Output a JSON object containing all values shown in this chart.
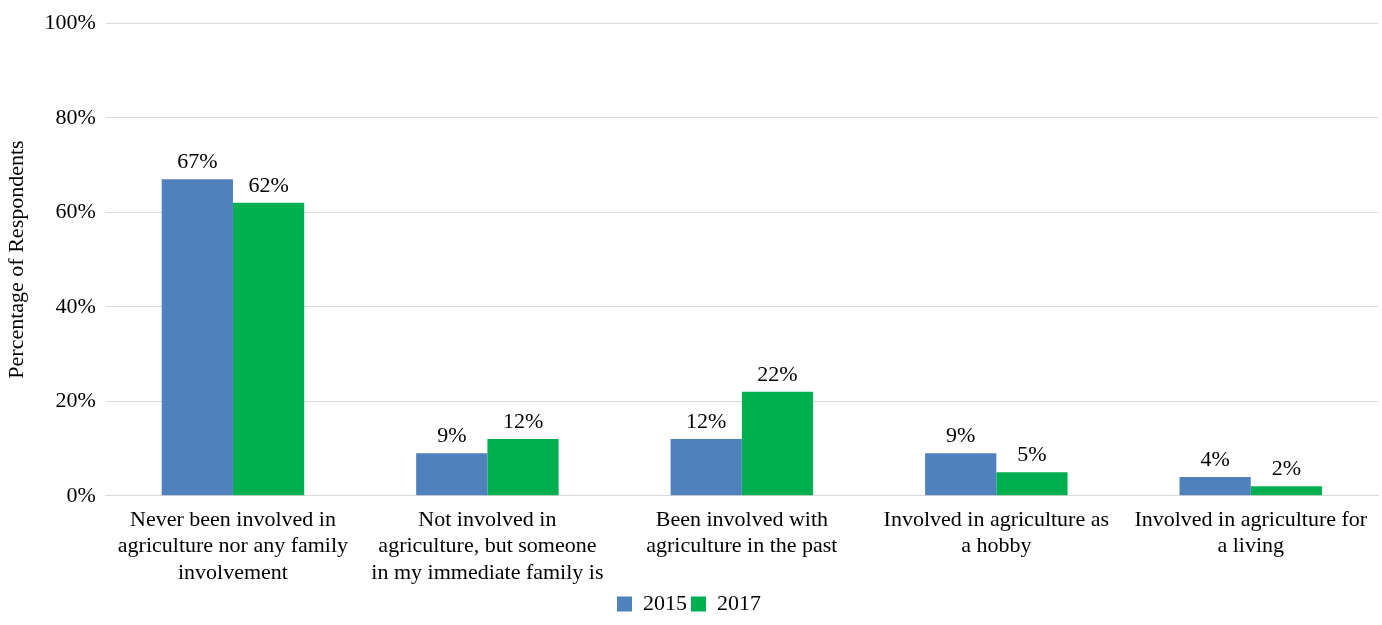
{
  "chart_data": {
    "type": "bar",
    "ylabel": "Percentage of Respondents",
    "categories": [
      "Never been involved in agriculture nor any family involvement",
      "Not involved in agriculture, but someone in my immediate family is",
      "Been involved with agriculture in the past",
      "Involved in agriculture as a hobby",
      "Involved in agriculture for a living"
    ],
    "series": [
      {
        "name": "2015",
        "color": "#4f81bd",
        "values": [
          67,
          9,
          12,
          9,
          4
        ],
        "value_labels": [
          "67%",
          "9%",
          "12%",
          "9%",
          "4%"
        ]
      },
      {
        "name": "2017",
        "color": "#00b050",
        "values": [
          62,
          12,
          22,
          5,
          2
        ],
        "value_labels": [
          "62%",
          "12%",
          "22%",
          "5%",
          "2%"
        ]
      }
    ],
    "ylim": [
      0,
      100
    ],
    "yticks": [
      {
        "value": 0,
        "label": "0%"
      },
      {
        "value": 20,
        "label": "20%"
      },
      {
        "value": 40,
        "label": "40%"
      },
      {
        "value": 60,
        "label": "60%"
      },
      {
        "value": 80,
        "label": "80%"
      },
      {
        "value": 100,
        "label": "100%"
      }
    ],
    "grid": "y",
    "legend": "bottom"
  }
}
